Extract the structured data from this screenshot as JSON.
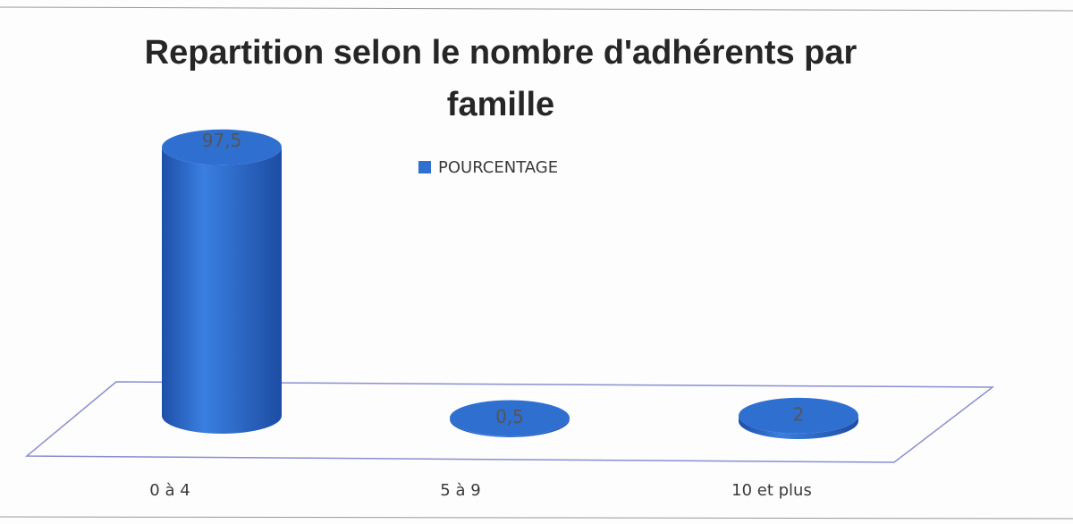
{
  "chart_data": {
    "type": "cylinder",
    "title": "Repartition selon le nombre d'adhérents par famille",
    "categories": [
      "0 à 4",
      "5 à 9",
      "10 et plus"
    ],
    "series": [
      {
        "name": "POURCENTAGE",
        "color": "#2f6fd0",
        "values": [
          97.5,
          0.5,
          2
        ],
        "value_labels": [
          "97,5",
          "0,5",
          "2"
        ]
      }
    ]
  }
}
